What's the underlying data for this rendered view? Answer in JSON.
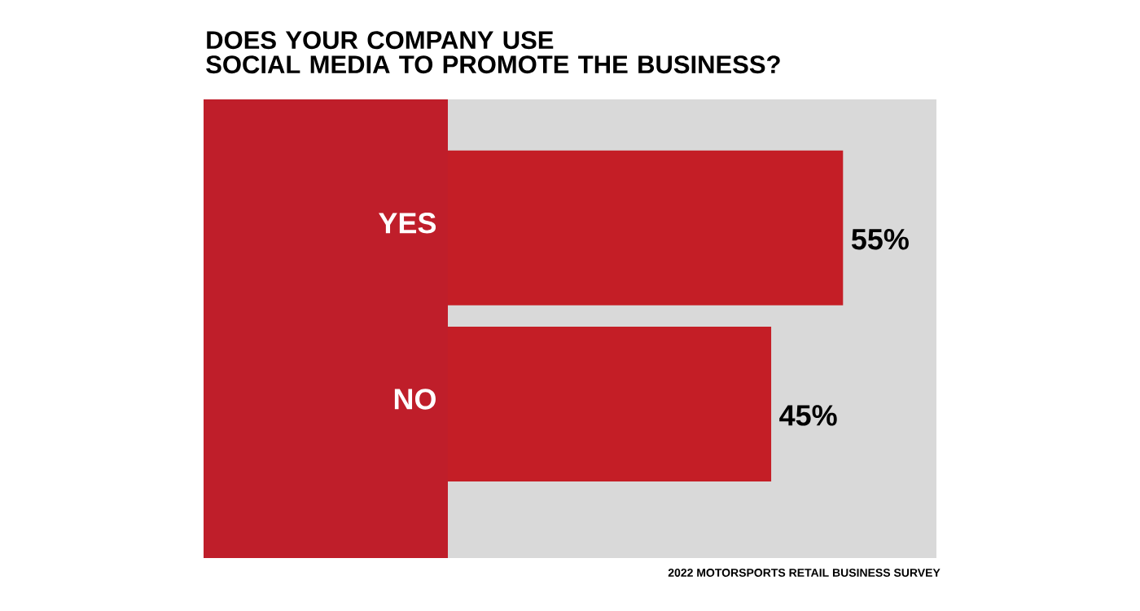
{
  "chart_data": {
    "type": "bar",
    "orientation": "horizontal",
    "title": "DOES YOUR COMPANY USE\nSOCIAL MEDIA TO PROMOTE THE BUSINESS?",
    "categories": [
      "YES",
      "NO"
    ],
    "values": [
      55,
      45
    ],
    "value_labels": [
      "55%",
      "45%"
    ],
    "color": "#c41e26",
    "xlim": [
      0,
      68
    ],
    "tick_labels": "y",
    "annotations": [
      "2022 MOTORSPORTS RETAIL BUSINESS SURVEY"
    ]
  }
}
